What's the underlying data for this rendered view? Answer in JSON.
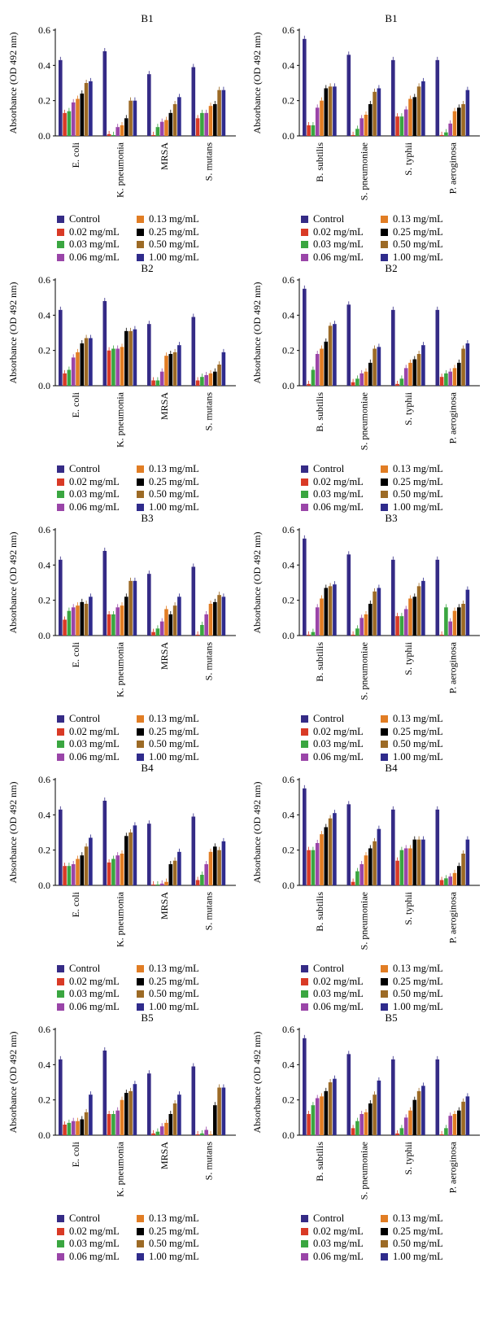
{
  "legend": [
    {
      "label": "Control",
      "color": "#352b86"
    },
    {
      "label": "0.02 mg/mL",
      "color": "#d93a26"
    },
    {
      "label": "0.03 mg/mL",
      "color": "#3aa640"
    },
    {
      "label": "0.06 mg/mL",
      "color": "#9a45a8"
    },
    {
      "label": "0.13 mg/mL",
      "color": "#e17d24"
    },
    {
      "label": "0.25 mg/mL",
      "color": "#000000"
    },
    {
      "label": "0.50 mg/mL",
      "color": "#9c6a25"
    },
    {
      "label": "1.00 mg/mL",
      "color": "#2f2b8c"
    }
  ],
  "chart_data": [
    {
      "type": "bar",
      "title": "B1",
      "ylabel": "Absorbance (OD 492 nm)",
      "ylim": [
        0,
        0.6
      ],
      "yticks": [
        0.0,
        0.2,
        0.4,
        0.6
      ],
      "categories": [
        "E. coli",
        "K. pneumonia",
        "MRSA",
        "S. mutans"
      ],
      "values": [
        [
          0.43,
          0.13,
          0.14,
          0.19,
          0.21,
          0.24,
          0.3,
          0.31
        ],
        [
          0.48,
          0.01,
          0.005,
          0.05,
          0.06,
          0.1,
          0.2,
          0.2
        ],
        [
          0.35,
          0.005,
          0.05,
          0.08,
          0.09,
          0.13,
          0.18,
          0.22
        ],
        [
          0.39,
          0.1,
          0.13,
          0.13,
          0.17,
          0.18,
          0.26,
          0.26
        ]
      ]
    },
    {
      "type": "bar",
      "title": "B1",
      "ylabel": "Absorbance (OD 492 nm)",
      "ylim": [
        0,
        0.6
      ],
      "yticks": [
        0.0,
        0.2,
        0.4,
        0.6
      ],
      "categories": [
        "B. subtilis",
        "S. pneumoniae",
        "S. typhii",
        "P. aeroginosa"
      ],
      "values": [
        [
          0.55,
          0.06,
          0.06,
          0.16,
          0.2,
          0.27,
          0.28,
          0.28
        ],
        [
          0.46,
          0.005,
          0.04,
          0.1,
          0.12,
          0.18,
          0.25,
          0.27
        ],
        [
          0.43,
          0.11,
          0.11,
          0.15,
          0.21,
          0.22,
          0.28,
          0.31
        ],
        [
          0.43,
          0.005,
          0.02,
          0.07,
          0.14,
          0.16,
          0.18,
          0.26
        ]
      ]
    },
    {
      "type": "bar",
      "title": "B2",
      "ylabel": "Absorbance (OD 492 nm)",
      "ylim": [
        0,
        0.6
      ],
      "yticks": [
        0.0,
        0.2,
        0.4,
        0.6
      ],
      "categories": [
        "E. coli",
        "K. pneumonia",
        "MRSA",
        "S. mutans"
      ],
      "values": [
        [
          0.43,
          0.07,
          0.09,
          0.16,
          0.19,
          0.24,
          0.27,
          0.27
        ],
        [
          0.48,
          0.2,
          0.21,
          0.21,
          0.22,
          0.31,
          0.31,
          0.32
        ],
        [
          0.35,
          0.03,
          0.03,
          0.08,
          0.17,
          0.18,
          0.19,
          0.23
        ],
        [
          0.39,
          0.03,
          0.05,
          0.06,
          0.07,
          0.08,
          0.12,
          0.19
        ]
      ]
    },
    {
      "type": "bar",
      "title": "B2",
      "ylabel": "Absorbance (OD 492 nm)",
      "ylim": [
        0,
        0.6
      ],
      "yticks": [
        0.0,
        0.2,
        0.4,
        0.6
      ],
      "categories": [
        "B. subtilis",
        "S. pneumoniae",
        "S. typhii",
        "P. aeroginosa"
      ],
      "values": [
        [
          0.55,
          0.01,
          0.09,
          0.18,
          0.21,
          0.25,
          0.34,
          0.35
        ],
        [
          0.46,
          0.02,
          0.04,
          0.07,
          0.08,
          0.13,
          0.21,
          0.22
        ],
        [
          0.43,
          0.01,
          0.04,
          0.1,
          0.13,
          0.15,
          0.18,
          0.23
        ],
        [
          0.43,
          0.05,
          0.07,
          0.08,
          0.1,
          0.13,
          0.21,
          0.24
        ]
      ]
    },
    {
      "type": "bar",
      "title": "B3",
      "ylabel": "Absorbance (OD 492 nm)",
      "ylim": [
        0,
        0.6
      ],
      "yticks": [
        0.0,
        0.2,
        0.4,
        0.6
      ],
      "categories": [
        "E. coli",
        "K. pneumonia",
        "MRSA",
        "S. mutans"
      ],
      "values": [
        [
          0.43,
          0.09,
          0.14,
          0.16,
          0.17,
          0.19,
          0.18,
          0.22
        ],
        [
          0.48,
          0.12,
          0.12,
          0.16,
          0.17,
          0.22,
          0.31,
          0.31
        ],
        [
          0.35,
          0.02,
          0.04,
          0.08,
          0.15,
          0.12,
          0.17,
          0.22
        ],
        [
          0.39,
          0.005,
          0.06,
          0.12,
          0.18,
          0.19,
          0.23,
          0.22
        ]
      ]
    },
    {
      "type": "bar",
      "title": "B3",
      "ylabel": "Absorbance (OD 492 nm)",
      "ylim": [
        0,
        0.6
      ],
      "yticks": [
        0.0,
        0.2,
        0.4,
        0.6
      ],
      "categories": [
        "B. subtilis",
        "S. pneumoniae",
        "S. typhii",
        "P. aeroginosa"
      ],
      "values": [
        [
          0.55,
          0.005,
          0.02,
          0.16,
          0.21,
          0.27,
          0.28,
          0.29
        ],
        [
          0.46,
          0.005,
          0.04,
          0.1,
          0.12,
          0.18,
          0.25,
          0.27
        ],
        [
          0.43,
          0.11,
          0.11,
          0.15,
          0.21,
          0.22,
          0.28,
          0.31
        ],
        [
          0.43,
          0.005,
          0.16,
          0.08,
          0.14,
          0.16,
          0.18,
          0.26
        ]
      ]
    },
    {
      "type": "bar",
      "title": "B4",
      "ylabel": "Absorbance (OD 492 nm)",
      "ylim": [
        0,
        0.6
      ],
      "yticks": [
        0.0,
        0.2,
        0.4,
        0.6
      ],
      "categories": [
        "E. coli",
        "K. pneumonia",
        "MRSA",
        "S. mutans"
      ],
      "values": [
        [
          0.43,
          0.11,
          0.11,
          0.12,
          0.15,
          0.17,
          0.22,
          0.27
        ],
        [
          0.48,
          0.13,
          0.15,
          0.17,
          0.18,
          0.28,
          0.3,
          0.34
        ],
        [
          0.35,
          0.005,
          0.005,
          0.01,
          0.02,
          0.12,
          0.14,
          0.19
        ],
        [
          0.39,
          0.03,
          0.06,
          0.12,
          0.19,
          0.22,
          0.2,
          0.25
        ]
      ]
    },
    {
      "type": "bar",
      "title": "B4",
      "ylabel": "Absorbance (OD 492 nm)",
      "ylim": [
        0,
        0.6
      ],
      "yticks": [
        0.0,
        0.2,
        0.4,
        0.6
      ],
      "categories": [
        "B. subtilis",
        "S. pneumoniae",
        "S. typhii",
        "P. aeroginosa"
      ],
      "values": [
        [
          0.55,
          0.2,
          0.2,
          0.24,
          0.29,
          0.33,
          0.38,
          0.41
        ],
        [
          0.46,
          0.02,
          0.08,
          0.12,
          0.17,
          0.21,
          0.25,
          0.32
        ],
        [
          0.43,
          0.14,
          0.2,
          0.21,
          0.21,
          0.26,
          0.26,
          0.26
        ],
        [
          0.43,
          0.03,
          0.04,
          0.05,
          0.07,
          0.11,
          0.18,
          0.26
        ]
      ]
    },
    {
      "type": "bar",
      "title": "B5",
      "ylabel": "Absorbance (OD 492 nm)",
      "ylim": [
        0,
        0.6
      ],
      "yticks": [
        0.0,
        0.2,
        0.4,
        0.6
      ],
      "categories": [
        "E. coli",
        "K. pneumonia",
        "MRSA",
        "S. mutans"
      ],
      "values": [
        [
          0.43,
          0.06,
          0.07,
          0.08,
          0.08,
          0.09,
          0.13,
          0.23
        ],
        [
          0.48,
          0.12,
          0.12,
          0.14,
          0.2,
          0.24,
          0.25,
          0.29
        ],
        [
          0.35,
          0.01,
          0.02,
          0.05,
          0.07,
          0.12,
          0.18,
          0.23
        ],
        [
          0.39,
          0.005,
          0.01,
          0.03,
          0.005,
          0.17,
          0.27,
          0.27
        ]
      ]
    },
    {
      "type": "bar",
      "title": "B5",
      "ylabel": "Absorbance (OD 492 nm)",
      "ylim": [
        0,
        0.6
      ],
      "yticks": [
        0.0,
        0.2,
        0.4,
        0.6
      ],
      "categories": [
        "B. subtilis",
        "S. pneumoniae",
        "S. typhii",
        "P. aeroginosa"
      ],
      "values": [
        [
          0.55,
          0.12,
          0.17,
          0.21,
          0.22,
          0.25,
          0.3,
          0.32
        ],
        [
          0.46,
          0.04,
          0.08,
          0.12,
          0.13,
          0.18,
          0.23,
          0.31
        ],
        [
          0.43,
          0.01,
          0.04,
          0.1,
          0.14,
          0.2,
          0.25,
          0.28
        ],
        [
          0.43,
          0.005,
          0.04,
          0.11,
          0.12,
          0.14,
          0.19,
          0.22
        ]
      ]
    }
  ]
}
